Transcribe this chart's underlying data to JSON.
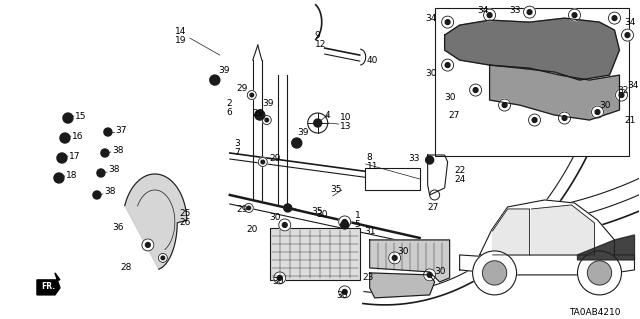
{
  "bg_color": "#ffffff",
  "diagram_id": "TA0AB4210",
  "fig_width": 6.4,
  "fig_height": 3.19,
  "dpi": 100
}
